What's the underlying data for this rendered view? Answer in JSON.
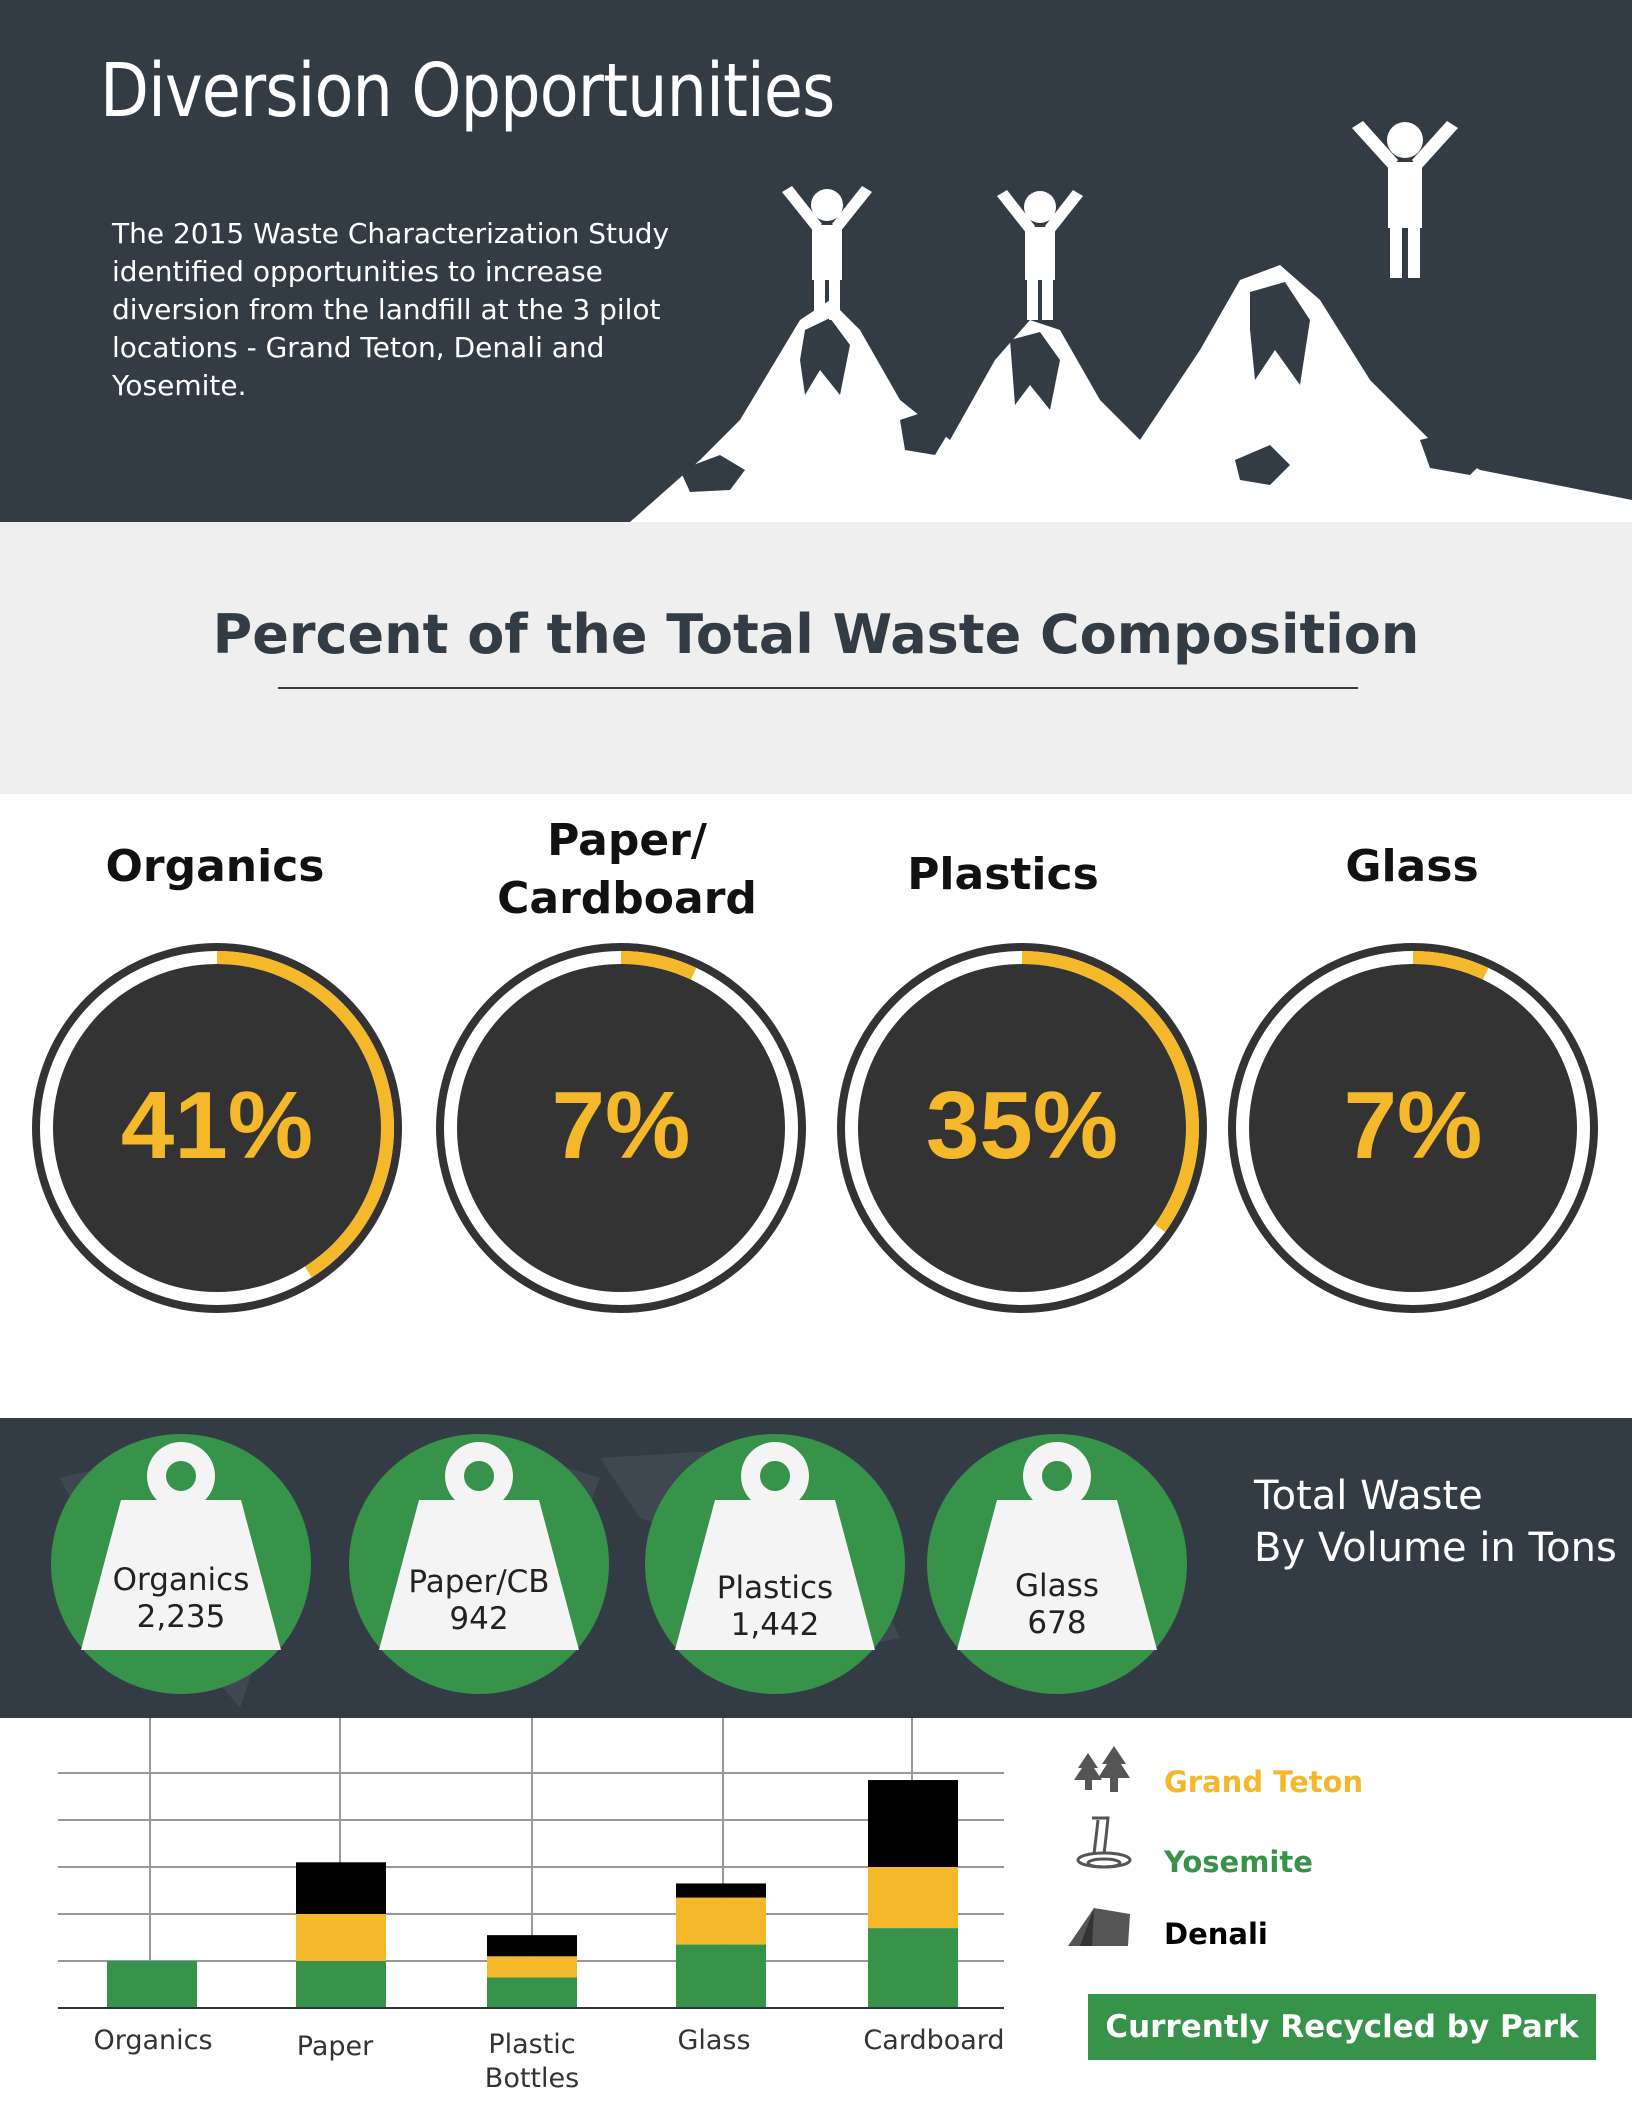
{
  "header": {
    "title": "Diversion Opportunities",
    "description": "The 2015 Waste Characterization Study identified opportunities to increase diversion from the landfill at the 3 pilot locations - Grand Teton, Denali and Yosemite."
  },
  "composition": {
    "title": "Percent of the Total Waste Composition",
    "items": [
      {
        "label": "Organics",
        "percent_text": "41%"
      },
      {
        "label_line1": "Paper/",
        "label_line2": "Cardboard",
        "percent_text": "7%"
      },
      {
        "label": "Plastics",
        "percent_text": "35%"
      },
      {
        "label": "Glass",
        "percent_text": "7%"
      }
    ]
  },
  "total_waste": {
    "title_line1": "Total Waste",
    "title_line2": "By Volume in Tons",
    "items": [
      {
        "name": "Organics",
        "value": "2,235"
      },
      {
        "name": "Paper/CB",
        "value": "942"
      },
      {
        "name": "Plastics",
        "value": "1,442"
      },
      {
        "name": "Glass",
        "value": "678"
      }
    ]
  },
  "legend": {
    "items": [
      {
        "name": "Grand Teton",
        "icon": "trees-icon",
        "color": "#f5b82a"
      },
      {
        "name": "Yosemite",
        "icon": "waterfall-icon",
        "color": "#37924a"
      },
      {
        "name": "Denali",
        "icon": "tent-icon",
        "color": "#000000"
      }
    ],
    "button_label": "Currently Recycled by Park"
  },
  "colors": {
    "dark": "#333c45",
    "accent": "#f5b82a",
    "green": "#37924a"
  },
  "chart_data": [
    {
      "type": "pie",
      "title": "Percent of the Total Waste Composition",
      "categories": [
        "Organics",
        "Paper/ Cardboard",
        "Plastics",
        "Glass"
      ],
      "values": [
        41,
        7,
        35,
        7
      ],
      "unit": "%"
    },
    {
      "type": "bar",
      "title": "Currently Recycled by Park",
      "stacked": true,
      "categories": [
        "Organics",
        "Paper",
        "Plastic Bottles",
        "Glass",
        "Cardboard"
      ],
      "series": [
        {
          "name": "Yosemite",
          "color": "#37924a",
          "values": [
            1.0,
            1.0,
            0.65,
            1.35,
            1.7
          ]
        },
        {
          "name": "Grand Teton",
          "color": "#f5b82a",
          "values": [
            0,
            1.0,
            0.45,
            1.0,
            1.3
          ]
        },
        {
          "name": "Denali",
          "color": "#000000",
          "values": [
            0,
            1.1,
            0.45,
            0.3,
            1.85
          ]
        }
      ],
      "ylim": [
        0,
        5
      ],
      "grid": true,
      "legend": "right"
    }
  ]
}
